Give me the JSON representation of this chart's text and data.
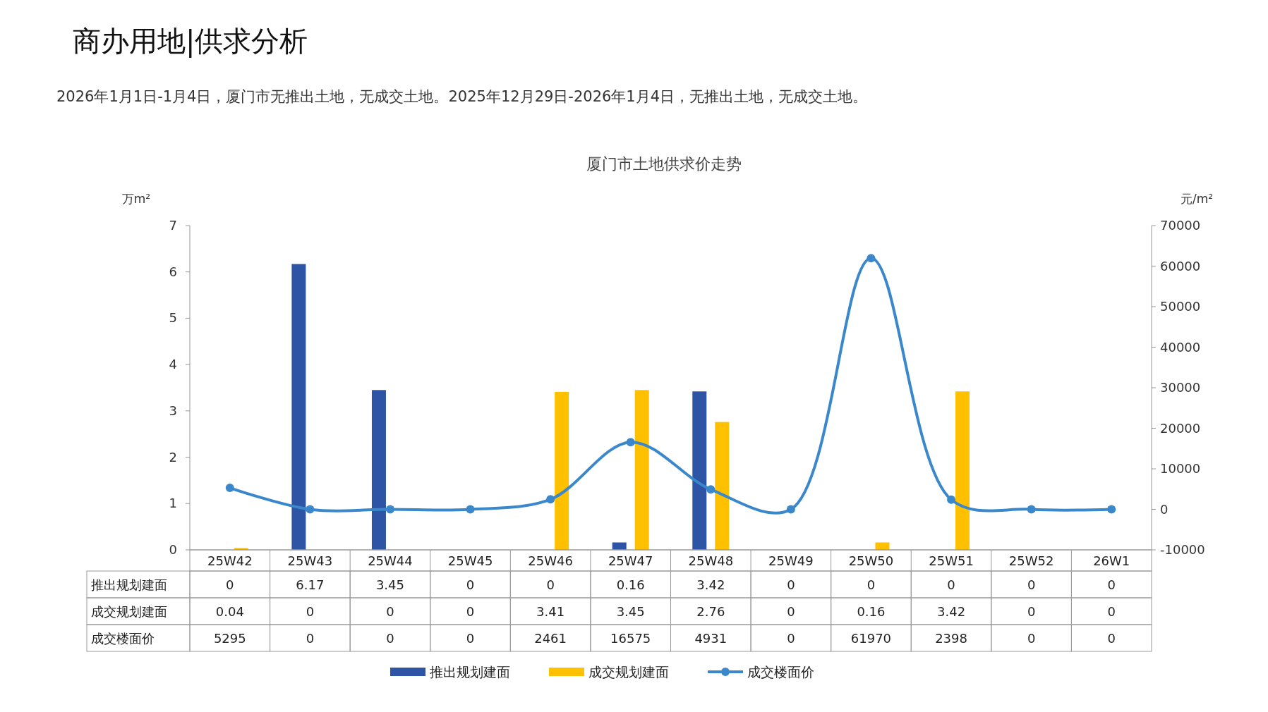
{
  "chart_data": {
    "type": "bar",
    "title": "厦门市土地供求价走势",
    "annotations": [
      "商办用地|供求分析",
      "2026年1月1日-1月4日，厦门市无推出土地，无成交土地。2025年12月29日-2026年1月4日，无推出土地，无成交土地。"
    ],
    "ylabel": "万m²",
    "y2label": "元/m²",
    "categories": [
      "25W42",
      "25W43",
      "25W44",
      "25W45",
      "25W46",
      "25W47",
      "25W48",
      "25W49",
      "25W50",
      "25W51",
      "25W52",
      "26W1"
    ],
    "series": [
      {
        "name": "推出规划建面",
        "color": "#2e54a6",
        "values": [
          0,
          6.17,
          3.45,
          0,
          0,
          0.16,
          3.42,
          0,
          0,
          0,
          0,
          0
        ]
      },
      {
        "name": "成交规划建面",
        "color": "#ffc000",
        "values": [
          0.04,
          0,
          0,
          0,
          3.41,
          3.45,
          2.76,
          0,
          0.16,
          3.42,
          0,
          0
        ]
      },
      {
        "name": "成交楼面价",
        "type": "line",
        "axis": "y2",
        "marker": "circle",
        "color": "#3a87cb",
        "values": [
          5295,
          0,
          0,
          0,
          2461,
          16575,
          4931,
          0,
          61970,
          2398,
          0,
          0
        ]
      }
    ],
    "ylim": [
      0,
      7
    ],
    "yticks": [
      0,
      1,
      2,
      3,
      4,
      5,
      6,
      7
    ],
    "y2lim": [
      -10000,
      70000
    ],
    "y2ticks": [
      -10000,
      0,
      10000,
      20000,
      30000,
      40000,
      50000,
      60000,
      70000
    ],
    "data_labels": true,
    "legend": "bottom",
    "grid": false
  }
}
